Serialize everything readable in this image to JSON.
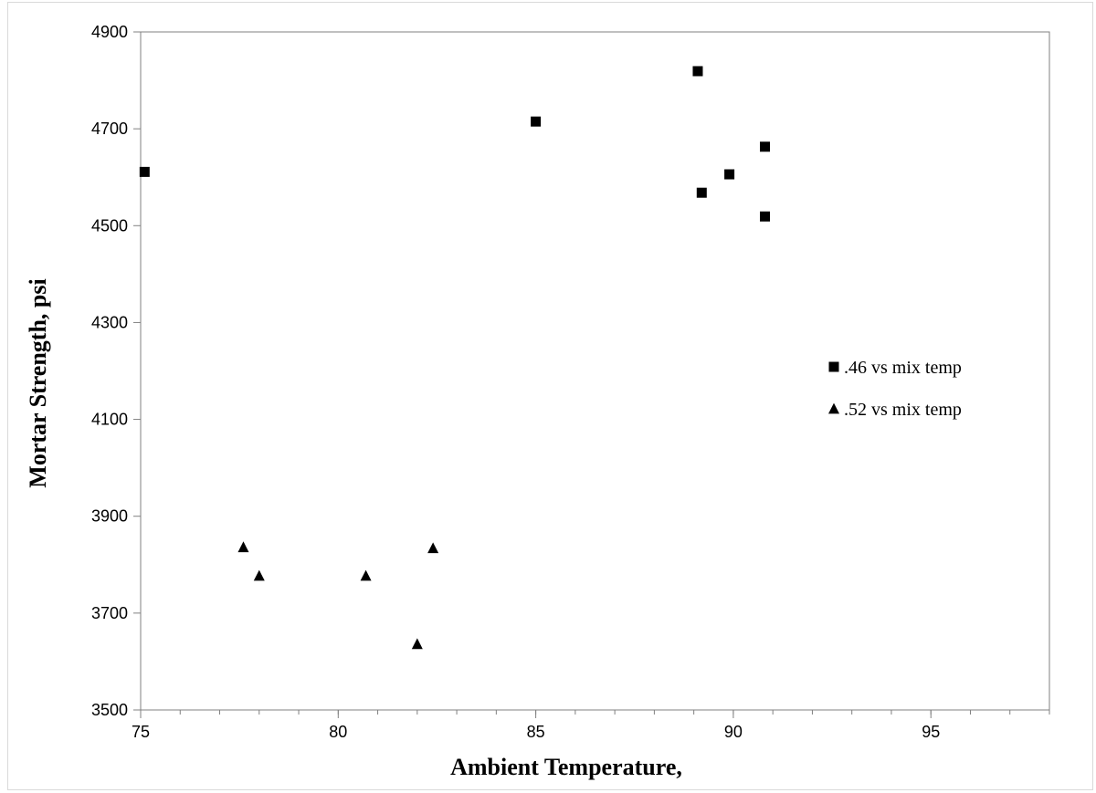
{
  "chart_data": {
    "type": "scatter",
    "title": "",
    "xlabel": "Ambient Temperature,",
    "ylabel": "Mortar Strength, psi",
    "xlim": [
      75,
      98
    ],
    "ylim": [
      3500,
      4900
    ],
    "x_ticks": [
      75,
      80,
      85,
      90,
      95
    ],
    "x_tick_labels": [
      "75",
      "80",
      "85",
      "90",
      "95"
    ],
    "x_minor_step": 1,
    "y_ticks": [
      3500,
      3700,
      3900,
      4100,
      4300,
      4500,
      4700,
      4900
    ],
    "y_tick_labels": [
      "3500",
      "3700",
      "3900",
      "4100",
      "4300",
      "4500",
      "4700",
      "4900"
    ],
    "grid": false,
    "legend_position": "right-middle",
    "series": [
      {
        "name": ".46 vs mix temp",
        "marker": "square",
        "color": "#000000",
        "points": [
          {
            "x": 75.1,
            "y": 4611
          },
          {
            "x": 85.0,
            "y": 4715
          },
          {
            "x": 89.1,
            "y": 4819
          },
          {
            "x": 90.8,
            "y": 4663
          },
          {
            "x": 89.9,
            "y": 4606
          },
          {
            "x": 89.2,
            "y": 4568
          },
          {
            "x": 90.8,
            "y": 4519
          }
        ]
      },
      {
        "name": ".52 vs mix temp",
        "marker": "triangle",
        "color": "#000000",
        "points": [
          {
            "x": 77.6,
            "y": 3836
          },
          {
            "x": 78.0,
            "y": 3777
          },
          {
            "x": 80.7,
            "y": 3777
          },
          {
            "x": 82.4,
            "y": 3834
          },
          {
            "x": 82.0,
            "y": 3636
          }
        ]
      }
    ]
  }
}
